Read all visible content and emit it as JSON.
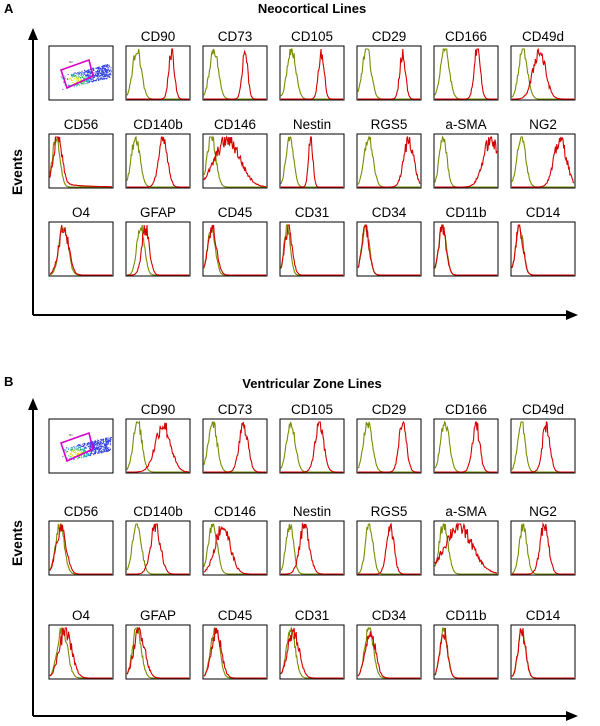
{
  "figure": {
    "y_label": "Events",
    "colors": {
      "control": "#7a8c00",
      "stained": "#d40000",
      "gate": "#d600c8",
      "axis": "#000000"
    }
  },
  "chart_data": [
    {
      "type": "histogram-grid",
      "panel": "A",
      "title": "Neocortical Lines",
      "ylabel": "Events",
      "scatter_gate_label": "R2",
      "rows": [
        [
          {
            "marker": "",
            "kind": "scatter"
          },
          {
            "marker": "CD90",
            "control_peak": 0.16,
            "control_width": 0.07,
            "stained_peak": 0.72,
            "stained_width": 0.045
          },
          {
            "marker": "CD73",
            "control_peak": 0.16,
            "control_width": 0.07,
            "stained_peak": 0.66,
            "stained_width": 0.045
          },
          {
            "marker": "CD105",
            "control_peak": 0.17,
            "control_width": 0.07,
            "stained_peak": 0.65,
            "stained_width": 0.045
          },
          {
            "marker": "CD29",
            "control_peak": 0.14,
            "control_width": 0.07,
            "stained_peak": 0.72,
            "stained_width": 0.045
          },
          {
            "marker": "CD166",
            "control_peak": 0.16,
            "control_width": 0.07,
            "stained_peak": 0.68,
            "stained_width": 0.05
          },
          {
            "marker": "CD49d",
            "control_peak": 0.18,
            "control_width": 0.07,
            "stained_peak": 0.44,
            "stained_width": 0.1
          }
        ],
        [
          {
            "marker": "CD56",
            "control_peak": 0.1,
            "control_width": 0.06,
            "stained_peak": 0.12,
            "stained_width": 0.07,
            "tail": true
          },
          {
            "marker": "CD140b",
            "control_peak": 0.14,
            "control_width": 0.07,
            "stained_peak": 0.58,
            "stained_width": 0.07
          },
          {
            "marker": "CD146",
            "control_peak": 0.12,
            "control_width": 0.07,
            "stained_peak": 0.38,
            "stained_width": 0.2
          },
          {
            "marker": "Nestin",
            "control_peak": 0.14,
            "control_width": 0.06,
            "stained_peak": 0.48,
            "stained_width": 0.035
          },
          {
            "marker": "RGS5",
            "control_peak": 0.17,
            "control_width": 0.07,
            "stained_peak": 0.82,
            "stained_width": 0.08
          },
          {
            "marker": "a-SMA",
            "control_peak": 0.13,
            "control_width": 0.06,
            "stained_peak": 0.9,
            "stained_width": 0.12
          },
          {
            "marker": "NG2",
            "control_peak": 0.15,
            "control_width": 0.07,
            "stained_peak": 0.78,
            "stained_width": 0.1
          }
        ],
        [
          {
            "marker": "O4",
            "control_peak": 0.22,
            "control_width": 0.07,
            "stained_peak": 0.22,
            "stained_width": 0.08
          },
          {
            "marker": "GFAP",
            "control_peak": 0.22,
            "control_width": 0.06,
            "stained_peak": 0.3,
            "stained_width": 0.06
          },
          {
            "marker": "CD45",
            "control_peak": 0.12,
            "control_width": 0.06,
            "stained_peak": 0.13,
            "stained_width": 0.07
          },
          {
            "marker": "CD31",
            "control_peak": 0.1,
            "control_width": 0.05,
            "stained_peak": 0.12,
            "stained_width": 0.06
          },
          {
            "marker": "CD34",
            "control_peak": 0.12,
            "control_width": 0.06,
            "stained_peak": 0.12,
            "stained_width": 0.06
          },
          {
            "marker": "CD11b",
            "control_peak": 0.12,
            "control_width": 0.06,
            "stained_peak": 0.12,
            "stained_width": 0.06
          },
          {
            "marker": "CD14",
            "control_peak": 0.12,
            "control_width": 0.06,
            "stained_peak": 0.12,
            "stained_width": 0.06
          }
        ]
      ]
    },
    {
      "type": "histogram-grid",
      "panel": "B",
      "title": "Ventricular Zone Lines",
      "ylabel": "Events",
      "scatter_gate_label": "R1",
      "rows": [
        [
          {
            "marker": "",
            "kind": "scatter"
          },
          {
            "marker": "CD90",
            "control_peak": 0.17,
            "control_width": 0.07,
            "stained_peak": 0.58,
            "stained_width": 0.12
          },
          {
            "marker": "CD73",
            "control_peak": 0.14,
            "control_width": 0.07,
            "stained_peak": 0.64,
            "stained_width": 0.07
          },
          {
            "marker": "CD105",
            "control_peak": 0.16,
            "control_width": 0.07,
            "stained_peak": 0.62,
            "stained_width": 0.07
          },
          {
            "marker": "CD29",
            "control_peak": 0.16,
            "control_width": 0.07,
            "stained_peak": 0.72,
            "stained_width": 0.06
          },
          {
            "marker": "CD166",
            "control_peak": 0.16,
            "control_width": 0.07,
            "stained_peak": 0.66,
            "stained_width": 0.06
          },
          {
            "marker": "CD49d",
            "control_peak": 0.15,
            "control_width": 0.06,
            "stained_peak": 0.55,
            "stained_width": 0.06
          }
        ],
        [
          {
            "marker": "CD56",
            "control_peak": 0.16,
            "control_width": 0.07,
            "stained_peak": 0.18,
            "stained_width": 0.08
          },
          {
            "marker": "CD140b",
            "control_peak": 0.16,
            "control_width": 0.07,
            "stained_peak": 0.46,
            "stained_width": 0.08
          },
          {
            "marker": "CD146",
            "control_peak": 0.14,
            "control_width": 0.07,
            "stained_peak": 0.3,
            "stained_width": 0.12
          },
          {
            "marker": "Nestin",
            "control_peak": 0.14,
            "control_width": 0.06,
            "stained_peak": 0.38,
            "stained_width": 0.08
          },
          {
            "marker": "RGS5",
            "control_peak": 0.18,
            "control_width": 0.06,
            "stained_peak": 0.52,
            "stained_width": 0.06
          },
          {
            "marker": "a-SMA",
            "control_peak": 0.14,
            "control_width": 0.07,
            "stained_peak": 0.38,
            "stained_width": 0.22
          },
          {
            "marker": "NG2",
            "control_peak": 0.18,
            "control_width": 0.06,
            "stained_peak": 0.52,
            "stained_width": 0.07
          }
        ],
        [
          {
            "marker": "O4",
            "control_peak": 0.2,
            "control_width": 0.08,
            "stained_peak": 0.25,
            "stained_width": 0.1
          },
          {
            "marker": "GFAP",
            "control_peak": 0.16,
            "control_width": 0.07,
            "stained_peak": 0.2,
            "stained_width": 0.09
          },
          {
            "marker": "CD45",
            "control_peak": 0.18,
            "control_width": 0.07,
            "stained_peak": 0.2,
            "stained_width": 0.08
          },
          {
            "marker": "CD31",
            "control_peak": 0.16,
            "control_width": 0.07,
            "stained_peak": 0.2,
            "stained_width": 0.09
          },
          {
            "marker": "CD34",
            "control_peak": 0.18,
            "control_width": 0.07,
            "stained_peak": 0.2,
            "stained_width": 0.08
          },
          {
            "marker": "CD11b",
            "control_peak": 0.14,
            "control_width": 0.06,
            "stained_peak": 0.14,
            "stained_width": 0.06
          },
          {
            "marker": "CD14",
            "control_peak": 0.16,
            "control_width": 0.06,
            "stained_peak": 0.16,
            "stained_width": 0.06
          }
        ]
      ]
    }
  ]
}
